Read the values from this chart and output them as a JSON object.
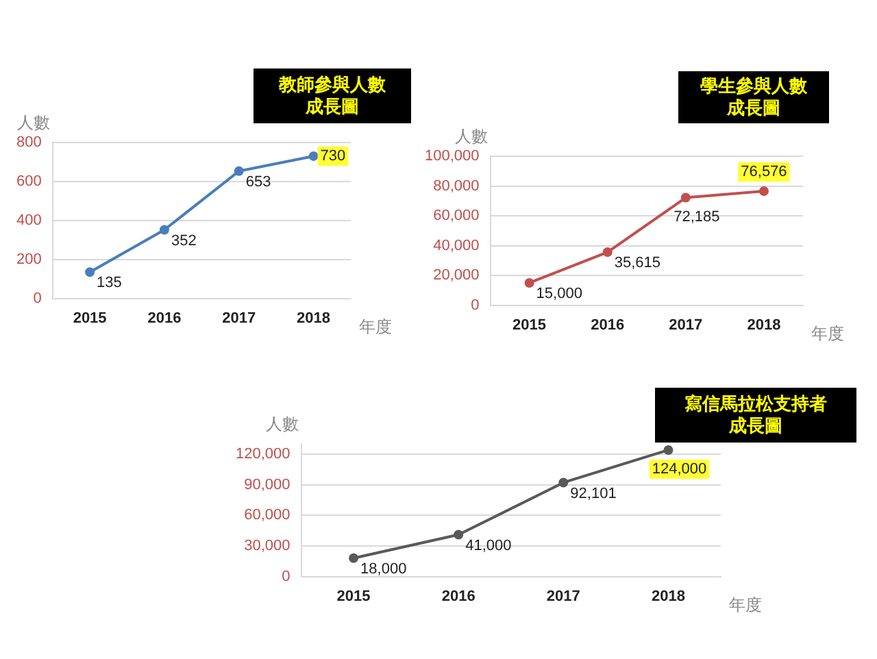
{
  "chart_data": [
    {
      "type": "line",
      "title": "教師參與人數成長圖",
      "xlabel": "年度",
      "ylabel": "人數",
      "categories": [
        "2015",
        "2016",
        "2017",
        "2018"
      ],
      "series": [
        {
          "color": "#4a7ebb",
          "values": [
            135,
            352,
            653,
            730
          ],
          "value_labels": [
            "135",
            "352",
            "653",
            "730"
          ]
        }
      ],
      "ylim": [
        0,
        800
      ],
      "yticks": [
        0,
        200,
        400,
        600,
        800
      ],
      "grid": "y",
      "legend": false,
      "marker": "circle"
    },
    {
      "type": "line",
      "title": "學生參與人數成長圖",
      "xlabel": "年度",
      "ylabel": "人數",
      "categories": [
        "2015",
        "2016",
        "2017",
        "2018"
      ],
      "series": [
        {
          "color": "#c0504d",
          "values": [
            15000,
            35615,
            72185,
            76576
          ],
          "value_labels": [
            "15,000",
            "35,615",
            "72,185",
            "76,576"
          ]
        }
      ],
      "ylim": [
        0,
        100000
      ],
      "yticks": [
        0,
        {
          "value": 20000,
          "label": "20,000"
        },
        {
          "value": 40000,
          "label": "40,000"
        },
        {
          "value": 60000,
          "label": "60,000"
        },
        {
          "value": 80000,
          "label": "80,000"
        },
        {
          "value": 100000,
          "label": "100,000"
        }
      ],
      "grid": "y",
      "legend": false,
      "marker": "circle"
    },
    {
      "type": "line",
      "title": "寫信馬拉松支持者成長圖",
      "xlabel": "年度",
      "ylabel": "人數",
      "categories": [
        "2015",
        "2016",
        "2017",
        "2018"
      ],
      "series": [
        {
          "color": "#595959",
          "values": [
            18000,
            41000,
            92101,
            124000
          ],
          "value_labels": [
            "18,000",
            "41,000",
            "92,101",
            "124,000"
          ]
        }
      ],
      "ylim": [
        0,
        130000
      ],
      "yticks": [
        0,
        {
          "value": 30000,
          "label": "30,000"
        },
        {
          "value": 60000,
          "label": "60,000"
        },
        {
          "value": 90000,
          "label": "90,000"
        },
        {
          "value": 120000,
          "label": "120,000"
        }
      ],
      "grid": "y",
      "legend": false,
      "marker": "circle"
    }
  ]
}
